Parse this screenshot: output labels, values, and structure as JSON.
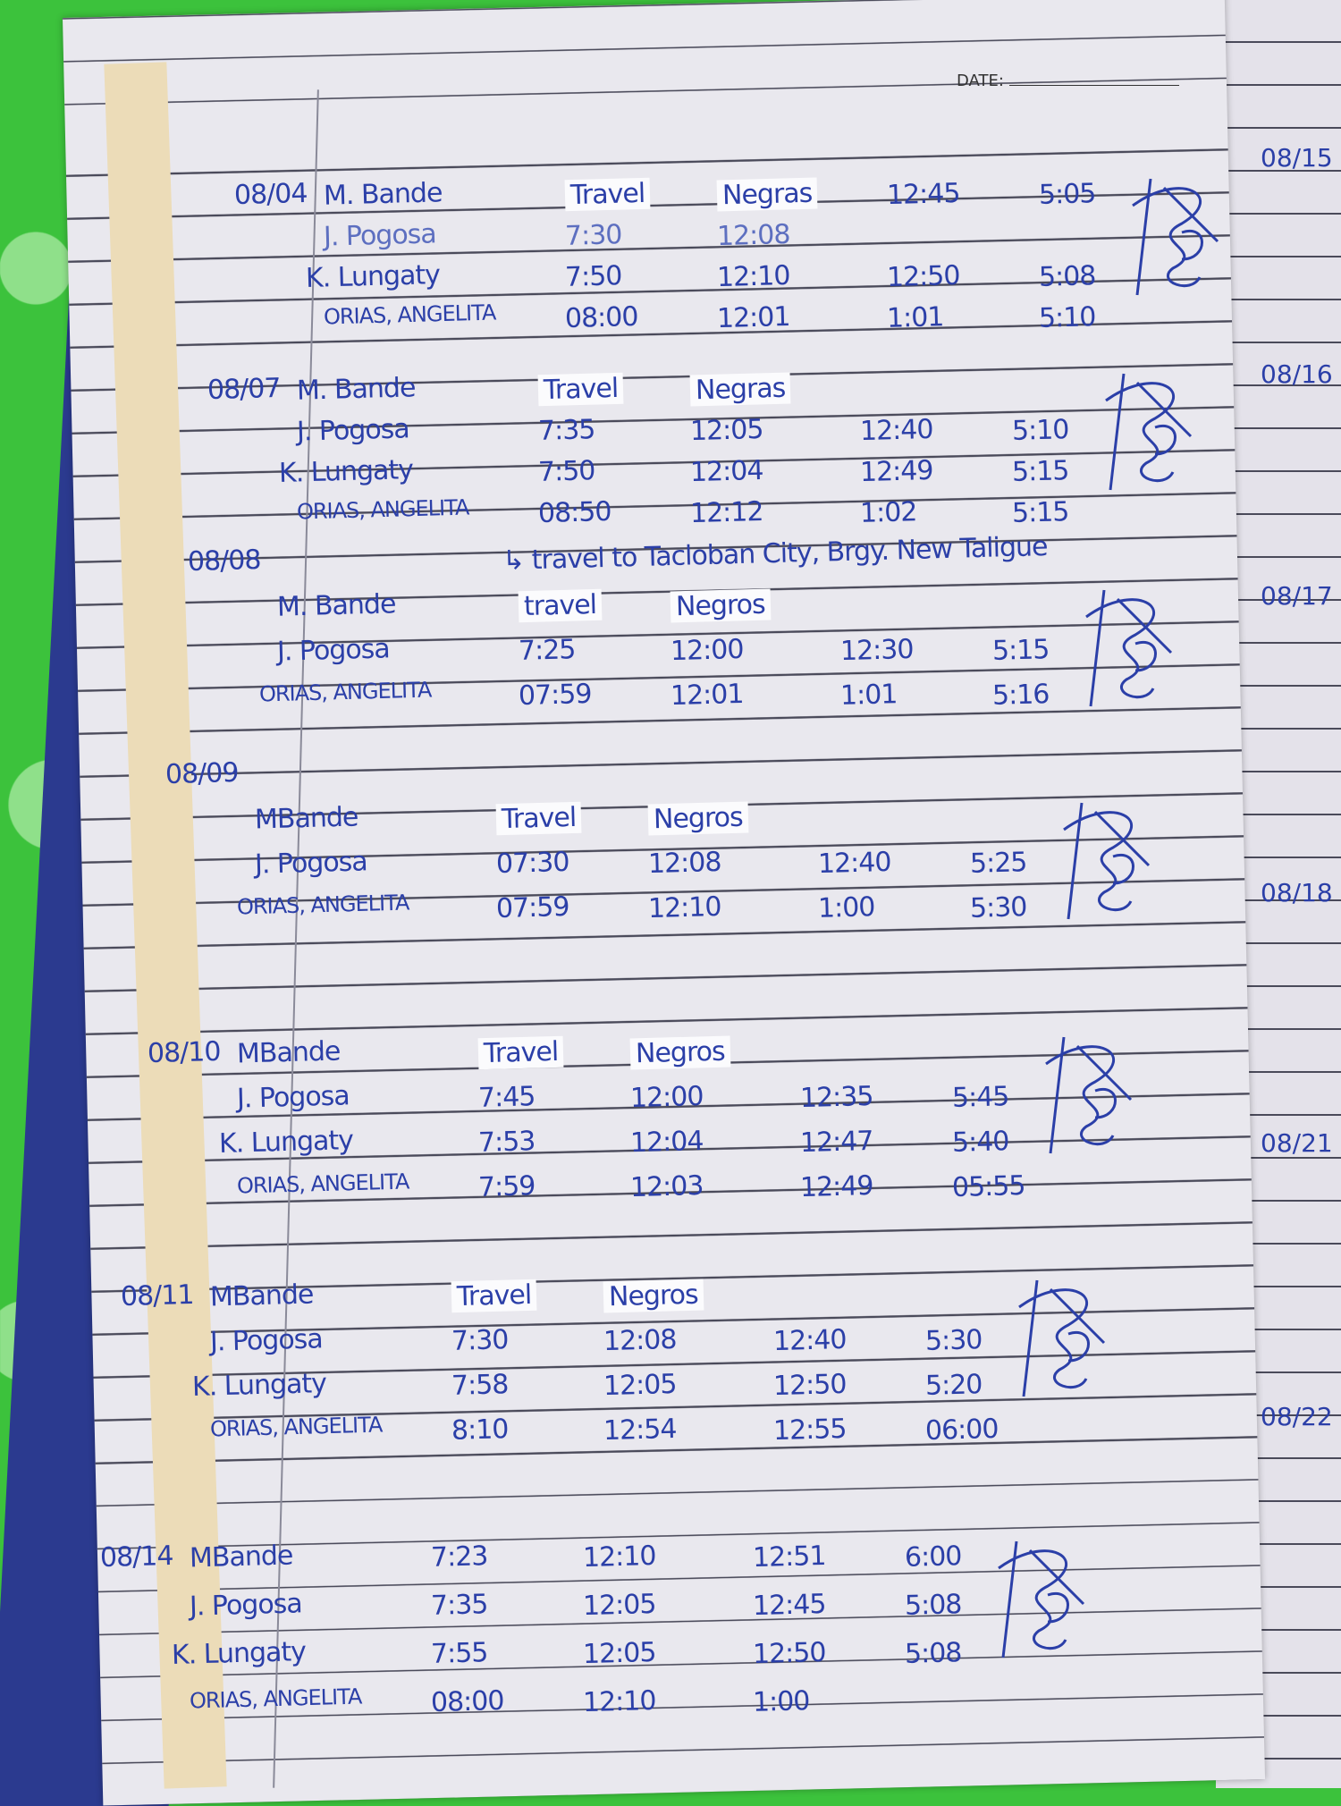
{
  "header": {
    "date_label": "DATE:"
  },
  "entries": [
    {
      "date": "08/04",
      "rows": [
        [
          "M. Bande",
          "Travel",
          "Negras",
          "12:45",
          "5:05"
        ],
        [
          "J. Pogosa",
          "7:30",
          "12:08",
          "",
          ""
        ],
        [
          "K. Lungaty",
          "7:50",
          "12:10",
          "12:50",
          "5:08"
        ],
        [
          "ORIAS, ANGELITA",
          "08:00",
          "12:01",
          "1:01",
          "5:10"
        ]
      ]
    },
    {
      "date": "08/07",
      "rows": [
        [
          "M. Bande",
          "Travel",
          "Negras",
          "",
          ""
        ],
        [
          "J. Pogosa",
          "7:35",
          "12:05",
          "12:40",
          "5:10"
        ],
        [
          "K. Lungaty",
          "7:50",
          "12:04",
          "12:49",
          "5:15"
        ],
        [
          "ORIAS, ANGELITA",
          "08:50",
          "12:12",
          "1:02",
          "5:15"
        ]
      ],
      "note": "↳ travel to Tacloban City, Brgy. New Taligue"
    },
    {
      "date": "08/08",
      "rows": [
        [
          "M. Bande",
          "travel",
          "Negros",
          "",
          ""
        ],
        [
          "J. Pogosa",
          "7:25",
          "12:00",
          "12:30",
          "5:15"
        ],
        [
          "ORIAS, ANGELITA",
          "07:59",
          "12:01",
          "1:01",
          "5:16"
        ]
      ]
    },
    {
      "date": "08/09",
      "rows": [
        [
          "MBande",
          "Travel",
          "Negros",
          "",
          ""
        ],
        [
          "J. Pogosa",
          "07:30",
          "12:08",
          "12:40",
          "5:25"
        ],
        [
          "ORIAS, ANGELITA",
          "07:59",
          "12:10",
          "1:00",
          "5:30"
        ]
      ]
    },
    {
      "date": "08/10",
      "rows": [
        [
          "MBande",
          "Travel",
          "Negros",
          "",
          ""
        ],
        [
          "J. Pogosa",
          "7:45",
          "12:00",
          "12:35",
          "5:45"
        ],
        [
          "K. Lungaty",
          "7:53",
          "12:04",
          "12:47",
          "5:40"
        ],
        [
          "ORIAS, ANGELITA",
          "7:59",
          "12:03",
          "12:49",
          "05:55"
        ]
      ]
    },
    {
      "date": "08/11",
      "rows": [
        [
          "MBande",
          "Travel",
          "Negros",
          "",
          ""
        ],
        [
          "J. Pogosa",
          "7:30",
          "12:08",
          "12:40",
          "5:30"
        ],
        [
          "K. Lungaty",
          "7:58",
          "12:05",
          "12:50",
          "5:20"
        ],
        [
          "ORIAS, ANGELITA",
          "8:10",
          "12:54",
          "12:55",
          "06:00"
        ]
      ]
    },
    {
      "date": "08/14",
      "rows": [
        [
          "MBande",
          "7:23",
          "12:10",
          "12:51",
          "6:00"
        ],
        [
          "J. Pogosa",
          "7:35",
          "12:05",
          "12:45",
          "5:08"
        ],
        [
          "K. Lungaty",
          "7:55",
          "12:05",
          "12:50",
          "5:08"
        ],
        [
          "ORIAS, ANGELITA",
          "08:00",
          "12:10",
          "1:00",
          ""
        ]
      ]
    }
  ],
  "right_page_dates": [
    "08/15",
    "08/16",
    "08/17",
    "08/18",
    "08/21",
    "08/22"
  ],
  "colors": {
    "ink": "#2b3fa8",
    "paper": "#e9e8ee",
    "background": "#3cc23c",
    "cover": "#2b3a8f"
  }
}
